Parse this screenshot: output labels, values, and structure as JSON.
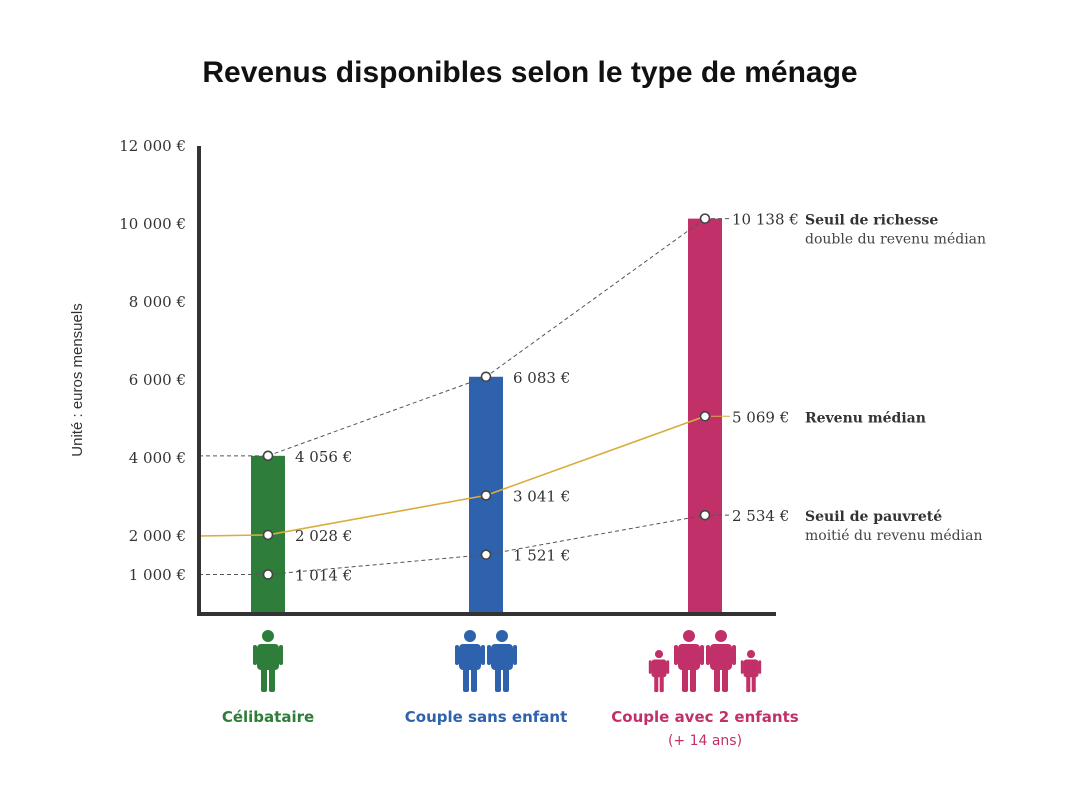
{
  "title": "Revenus disponibles selon le type de ménage",
  "chart_data": {
    "type": "bar",
    "title": "Revenus disponibles selon le type de ménage",
    "ylabel": "Unité : euros mensuels",
    "ylim": [
      0,
      12000
    ],
    "y_ticks": [
      "1 000 €",
      "2 000 €",
      "4 000 €",
      "6 000 €",
      "8 000 €",
      "10 000 €",
      "12 000 €"
    ],
    "categories": [
      {
        "label": "Célibataire",
        "sublabel": "",
        "color": "#2e7d3a",
        "icon": "single-person-icon"
      },
      {
        "label": "Couple sans enfant",
        "sublabel": "",
        "color": "#2f62ad",
        "icon": "couple-icon"
      },
      {
        "label": "Couple avec 2 enfants",
        "sublabel": "(+ 14 ans)",
        "color": "#c2306a",
        "icon": "family-icon"
      }
    ],
    "bar_values": [
      4056,
      6083,
      10138
    ],
    "series": [
      {
        "name": "Seuil de richesse",
        "subtitle": "double du revenu médian",
        "values": [
          4056,
          6083,
          10138
        ],
        "labels": [
          "4 056 €",
          "6 083 €",
          "10 138 €"
        ],
        "style": "dashed",
        "color": "#555555"
      },
      {
        "name": "Revenu médian",
        "subtitle": "",
        "values": [
          2028,
          3041,
          5069
        ],
        "labels": [
          "2 028 €",
          "3 041 €",
          "5 069 €"
        ],
        "style": "solid",
        "color": "#d9ad3c"
      },
      {
        "name": "Seuil de pauvreté",
        "subtitle": "moitié du revenu médian",
        "values": [
          1014,
          1521,
          2534
        ],
        "labels": [
          "1 014 €",
          "1 521 €",
          "2 534 €"
        ],
        "style": "dashed",
        "color": "#555555"
      }
    ],
    "grid": false
  }
}
